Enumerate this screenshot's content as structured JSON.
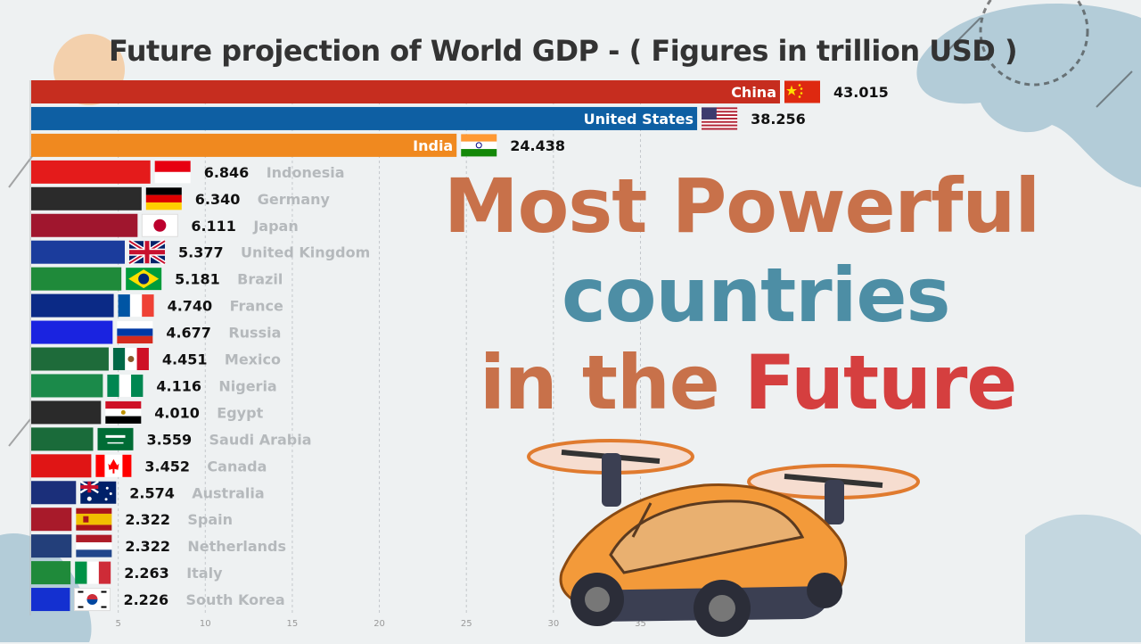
{
  "headline": {
    "line1": "Most Powerful",
    "line2": "countries",
    "line3_a": "in the ",
    "line3_b": "Future"
  },
  "colors": {
    "headline_orange": "#c8714a",
    "headline_blue": "#4d8ea5",
    "headline_red": "#d53f3f"
  },
  "chart_data": {
    "type": "bar",
    "orientation": "horizontal",
    "title": "Future projection of World GDP  - ( Figures in trillion USD )",
    "x_ticks": [
      5,
      10,
      15,
      20,
      25,
      30,
      35
    ],
    "xlim": [
      0,
      43.015
    ],
    "grid": true,
    "categories": [
      "China",
      "United States",
      "India",
      "Indonesia",
      "Germany",
      "Japan",
      "United Kingdom",
      "Brazil",
      "France",
      "Russia",
      "Mexico",
      "Nigeria",
      "Egypt",
      "Saudi Arabia",
      "Canada",
      "Australia",
      "Spain",
      "Netherlands",
      "Italy",
      "South Korea"
    ],
    "values": [
      43.015,
      38.256,
      24.438,
      6.846,
      6.34,
      6.111,
      5.377,
      5.181,
      4.74,
      4.677,
      4.451,
      4.116,
      4.01,
      3.559,
      3.452,
      2.574,
      2.322,
      2.322,
      2.263,
      2.226
    ],
    "value_labels": [
      "43.015",
      "38.256",
      "24.438",
      "6.846",
      "6.340",
      "6.111",
      "5.377",
      "5.181",
      "4.740",
      "4.677",
      "4.451",
      "4.116",
      "4.010",
      "3.559",
      "3.452",
      "2.574",
      "2.322",
      "2.322",
      "2.263",
      "2.226"
    ],
    "flags": [
      "cn",
      "us",
      "in",
      "id",
      "de",
      "jp",
      "gb",
      "br",
      "fr",
      "ru",
      "mx",
      "ng",
      "eg",
      "sa",
      "ca",
      "au",
      "es",
      "nl",
      "it",
      "kr"
    ],
    "bar_colors": [
      "#c62d1f",
      "#0e5fa3",
      "#f0891f",
      "#e41b1b",
      "#2b2b2b",
      "#a0162e",
      "#1b3c9c",
      "#1f8a3a",
      "#0b2a86",
      "#1a23e0",
      "#1e6b3a",
      "#1b8a4a",
      "#2a2a2a",
      "#1a6b3a",
      "#e01515",
      "#1b2f7a",
      "#a81a2a",
      "#233f7a",
      "#1f8a3a",
      "#1430d0"
    ]
  }
}
